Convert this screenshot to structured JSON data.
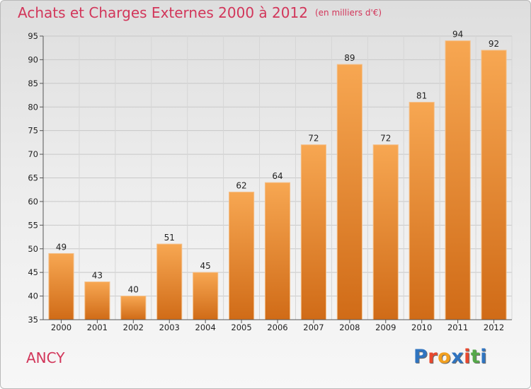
{
  "header": {
    "title": "Achats et Charges Externes 2000 à 2012",
    "unit": "(en milliers d'€)"
  },
  "footer": {
    "location": "ANCY",
    "logo_text": "Proxiti",
    "logo_colors": [
      "#2f74c0",
      "#e8482e",
      "#f2a020",
      "#2f74c0",
      "#e8482e",
      "#55a84a",
      "#2f74c0"
    ]
  },
  "colors": {
    "bar_light": "#f7a752",
    "bar_dark": "#d06b17",
    "title": "#d2365a",
    "grid": "#c8c8c8",
    "axis": "#555555"
  },
  "chart_data": {
    "type": "bar",
    "title": "Achats et Charges Externes 2000 à 2012",
    "subtitle": "(en milliers d'€)",
    "xlabel": "",
    "ylabel": "",
    "categories": [
      "2000",
      "2001",
      "2002",
      "2003",
      "2004",
      "2005",
      "2006",
      "2007",
      "2008",
      "2009",
      "2010",
      "2011",
      "2012"
    ],
    "values": [
      49,
      43,
      40,
      51,
      45,
      62,
      64,
      72,
      89,
      72,
      81,
      94,
      92
    ],
    "ylim": [
      35,
      95
    ],
    "yticks": [
      35,
      40,
      45,
      50,
      55,
      60,
      65,
      70,
      75,
      80,
      85,
      90,
      95
    ],
    "grid": true,
    "legend": "none"
  }
}
